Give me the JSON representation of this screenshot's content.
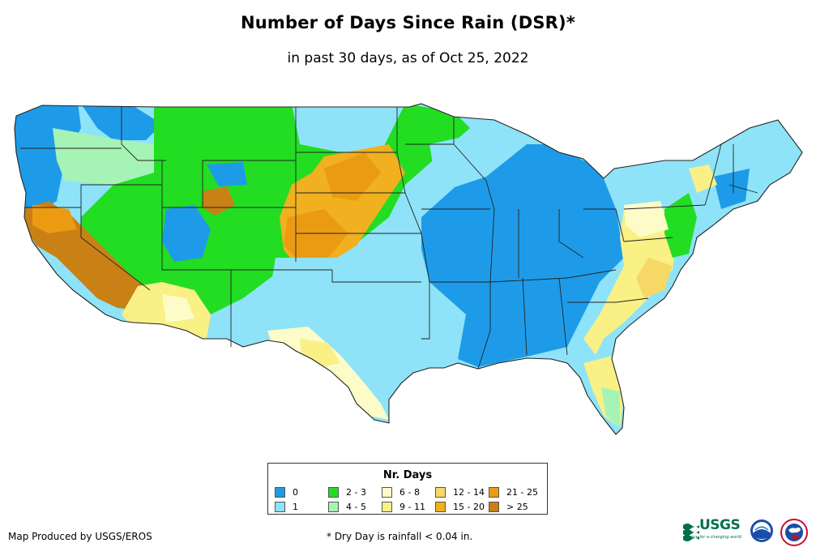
{
  "title": "Number of Days Since Rain (DSR)*",
  "subtitle": "in past 30 days, as of Oct 25, 2022",
  "legend": {
    "title": "Nr. Days",
    "items": [
      {
        "label": "0",
        "color": "#1e9be8"
      },
      {
        "label": "2 - 3",
        "color": "#22dd22"
      },
      {
        "label": "6 - 8",
        "color": "#fdfcc8"
      },
      {
        "label": "12 - 14",
        "color": "#f5d866"
      },
      {
        "label": "21 - 25",
        "color": "#eb9b12"
      },
      {
        "label": "1",
        "color": "#8ee3f8"
      },
      {
        "label": "4 - 5",
        "color": "#a6f3b6"
      },
      {
        "label": "9 - 11",
        "color": "#f9f086"
      },
      {
        "label": "15 - 20",
        "color": "#f0b020"
      },
      {
        "label": "> 25",
        "color": "#c98015"
      }
    ]
  },
  "footer": {
    "credit": "Map Produced by USGS/EROS",
    "note": "* Dry Day is rainfall < 0.04 in."
  },
  "logos": {
    "usgs": "USGS",
    "usgs_tagline": "science for a changing world",
    "noaa": "noaa-logo",
    "nws": "nws-logo"
  }
}
